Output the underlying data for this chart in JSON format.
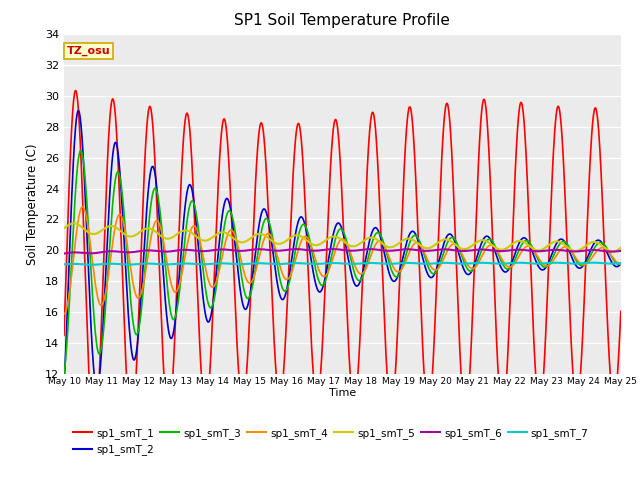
{
  "title": "SP1 Soil Temperature Profile",
  "xlabel": "Time",
  "ylabel": "Soil Temperature (C)",
  "ylim": [
    12,
    34
  ],
  "yticks": [
    12,
    14,
    16,
    18,
    20,
    22,
    24,
    26,
    28,
    30,
    32,
    34
  ],
  "xtick_labels": [
    "May 10",
    "May 11",
    "May 12",
    "May 13",
    "May 14",
    "May 15",
    "May 16",
    "May 17",
    "May 18",
    "May 19",
    "May 20",
    "May 21",
    "May 22",
    "May 23",
    "May 24",
    "May 25"
  ],
  "series_colors": {
    "sp1_smT_1": "#ff0000",
    "sp1_smT_2": "#0000cc",
    "sp1_smT_3": "#00bb00",
    "sp1_smT_4": "#ff8800",
    "sp1_smT_5": "#cccc00",
    "sp1_smT_6": "#aa00aa",
    "sp1_smT_7": "#00cccc"
  },
  "background_color": "#ebebeb",
  "annotation_text": "TZ_osu",
  "annotation_bg": "#ffffcc",
  "annotation_border": "#ccaa00",
  "figsize": [
    6.4,
    4.8
  ],
  "dpi": 100
}
